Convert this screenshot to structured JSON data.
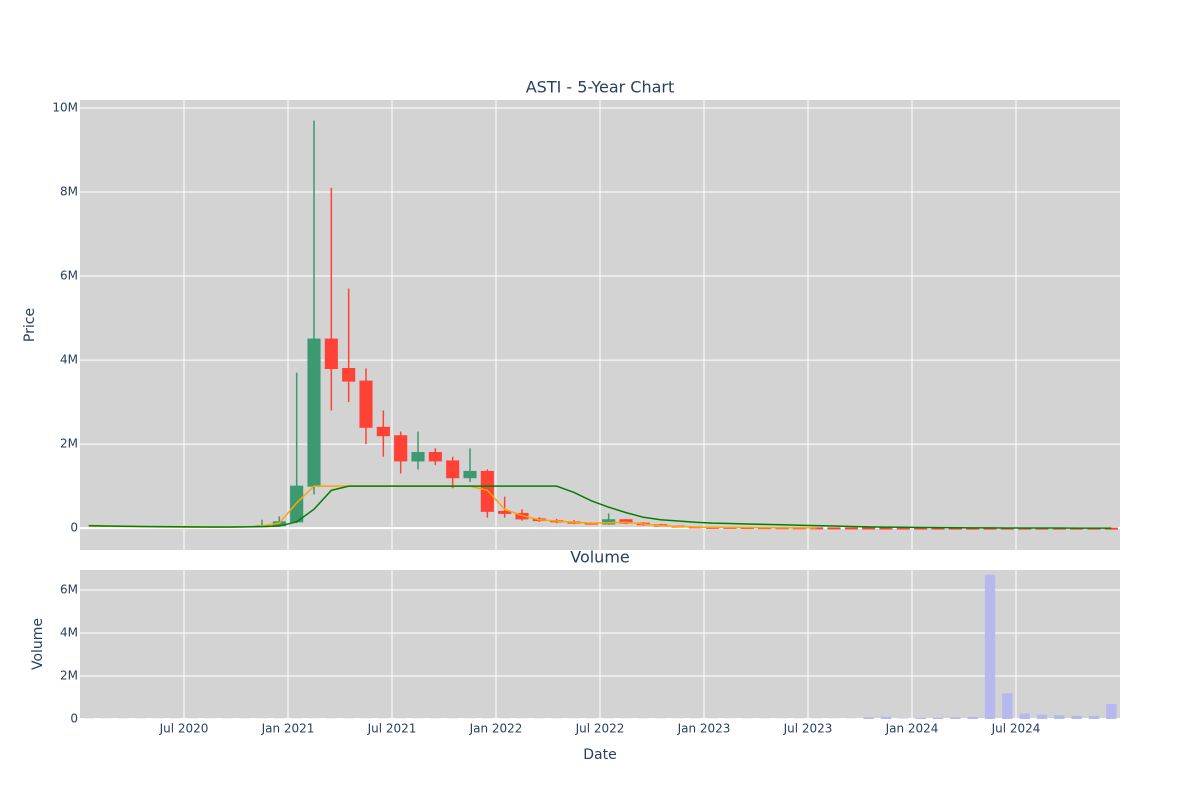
{
  "chart_data": [
    {
      "type": "candlestick",
      "title": "ASTI - 5-Year Chart",
      "y_label": "Price",
      "xlim": [
        "2020-01",
        "2025-01"
      ],
      "x": [
        "2020-01",
        "2020-02",
        "2020-03",
        "2020-04",
        "2020-05",
        "2020-06",
        "2020-07",
        "2020-08",
        "2020-09",
        "2020-10",
        "2020-11",
        "2020-12",
        "2021-01",
        "2021-02",
        "2021-03",
        "2021-04",
        "2021-05",
        "2021-06",
        "2021-07",
        "2021-08",
        "2021-09",
        "2021-10",
        "2021-11",
        "2021-12",
        "2022-01",
        "2022-02",
        "2022-03",
        "2022-04",
        "2022-05",
        "2022-06",
        "2022-07",
        "2022-08",
        "2022-09",
        "2022-10",
        "2022-11",
        "2022-12",
        "2023-01",
        "2023-02",
        "2023-03",
        "2023-04",
        "2023-05",
        "2023-06",
        "2023-07",
        "2023-08",
        "2023-09",
        "2023-10",
        "2023-11",
        "2023-12",
        "2024-01",
        "2024-02",
        "2024-03",
        "2024-04",
        "2024-05",
        "2024-06",
        "2024-07",
        "2024-08",
        "2024-09",
        "2024-10",
        "2024-11",
        "2024-12"
      ],
      "open": [
        null,
        null,
        null,
        null,
        null,
        null,
        null,
        null,
        null,
        null,
        40000,
        60000,
        150000,
        1000000,
        4500000,
        3800000,
        3500000,
        2400000,
        2200000,
        1600000,
        1800000,
        1600000,
        1200000,
        1350000,
        400000,
        350000,
        220000,
        180000,
        150000,
        120000,
        100000,
        200000,
        120000,
        80000,
        50000,
        30000,
        20000,
        18000,
        15000,
        12000,
        10000,
        8000,
        7000,
        6000,
        5000,
        4000,
        3500,
        3000,
        2500,
        2000,
        1800,
        1500,
        1200,
        1000,
        900,
        800,
        700,
        600,
        500,
        400
      ],
      "high": [
        null,
        null,
        null,
        null,
        null,
        null,
        null,
        null,
        null,
        null,
        200000,
        280000,
        3700000,
        9700000,
        8100000,
        5700000,
        3800000,
        2800000,
        2300000,
        2300000,
        1900000,
        1700000,
        1900000,
        1400000,
        750000,
        450000,
        260000,
        220000,
        190000,
        140000,
        350000,
        220000,
        140000,
        100000,
        60000,
        40000,
        25000,
        22000,
        18000,
        15000,
        12000,
        10000,
        9000,
        8000,
        6000,
        5000,
        4000,
        3500,
        3000,
        2500,
        2200,
        1800,
        1500,
        1300,
        1100,
        1000,
        900,
        800,
        700,
        600
      ],
      "low": [
        null,
        null,
        null,
        null,
        null,
        null,
        null,
        null,
        null,
        null,
        30000,
        50000,
        120000,
        800000,
        2800000,
        3000000,
        2000000,
        1700000,
        1300000,
        1400000,
        1500000,
        950000,
        1100000,
        250000,
        250000,
        180000,
        150000,
        120000,
        100000,
        90000,
        80000,
        100000,
        60000,
        40000,
        20000,
        10000,
        15000,
        12000,
        10000,
        9000,
        7000,
        6000,
        5000,
        4000,
        3500,
        3000,
        2500,
        2000,
        1800,
        1500,
        1300,
        1100,
        900,
        800,
        700,
        600,
        500,
        400,
        350,
        250
      ],
      "close": [
        null,
        null,
        null,
        null,
        null,
        null,
        null,
        null,
        null,
        null,
        60000,
        150000,
        1000000,
        4500000,
        3800000,
        3500000,
        2400000,
        2200000,
        1600000,
        1800000,
        1600000,
        1200000,
        1350000,
        400000,
        350000,
        220000,
        180000,
        150000,
        120000,
        100000,
        200000,
        120000,
        80000,
        50000,
        30000,
        20000,
        18000,
        15000,
        12000,
        10000,
        8000,
        7000,
        6000,
        5000,
        4000,
        3500,
        3000,
        2500,
        2000,
        1800,
        1500,
        1200,
        1000,
        900,
        800,
        700,
        600,
        500,
        400,
        300
      ],
      "increasing_color": "#3d9970",
      "decreasing_color": "#ff4136",
      "series": [
        {
          "color": "#ffa500",
          "values": [
            50000,
            45000,
            40000,
            35000,
            30000,
            28000,
            25000,
            25000,
            25000,
            30000,
            50000,
            120000,
            600000,
            1000000,
            1000000,
            1000000,
            1000000,
            1000000,
            1000000,
            1000000,
            1000000,
            1000000,
            1000000,
            900000,
            450000,
            300000,
            200000,
            170000,
            140000,
            120000,
            130000,
            140000,
            100000,
            60000,
            40000,
            25000,
            20000,
            15000,
            12000,
            10000,
            8000,
            7000,
            6000,
            null,
            null,
            null,
            null,
            null,
            null,
            null,
            null,
            null,
            null,
            null,
            null,
            null,
            null,
            null,
            null,
            null
          ]
        },
        {
          "color": "#008000",
          "values": [
            60000,
            50000,
            45000,
            40000,
            35000,
            32000,
            30000,
            28000,
            28000,
            30000,
            35000,
            50000,
            150000,
            450000,
            900000,
            1000000,
            1000000,
            1000000,
            1000000,
            1000000,
            1000000,
            1000000,
            1000000,
            1000000,
            1000000,
            1000000,
            1000000,
            1000000,
            850000,
            650000,
            500000,
            370000,
            260000,
            200000,
            170000,
            140000,
            120000,
            110000,
            100000,
            90000,
            80000,
            70000,
            60000,
            50000,
            40000,
            30000,
            25000,
            20000,
            15000,
            12000,
            10000,
            8000,
            6000,
            5000,
            4000,
            3000,
            2500,
            2000,
            1500,
            1000
          ]
        }
      ],
      "ylim": [
        -520000,
        10190000
      ],
      "yticks": [
        0,
        {
          "value": 2000000,
          "label": "2M"
        },
        {
          "value": 4000000,
          "label": "4M"
        },
        {
          "value": 6000000,
          "label": "6M"
        },
        {
          "value": 8000000,
          "label": "8M"
        },
        {
          "value": 10000000,
          "label": "10M"
        }
      ],
      "grid": true
    },
    {
      "type": "bar",
      "title": "Volume",
      "y_label": "Volume",
      "x_label": "Date",
      "xlim": [
        "2020-01",
        "2025-01"
      ],
      "x": [
        "2020-01",
        "2020-02",
        "2020-03",
        "2020-04",
        "2020-05",
        "2020-06",
        "2020-07",
        "2020-08",
        "2020-09",
        "2020-10",
        "2020-11",
        "2020-12",
        "2021-01",
        "2021-02",
        "2021-03",
        "2021-04",
        "2021-05",
        "2021-06",
        "2021-07",
        "2021-08",
        "2021-09",
        "2021-10",
        "2021-11",
        "2021-12",
        "2022-01",
        "2022-02",
        "2022-03",
        "2022-04",
        "2022-05",
        "2022-06",
        "2022-07",
        "2022-08",
        "2022-09",
        "2022-10",
        "2022-11",
        "2022-12",
        "2023-01",
        "2023-02",
        "2023-03",
        "2023-04",
        "2023-05",
        "2023-06",
        "2023-07",
        "2023-08",
        "2023-09",
        "2023-10",
        "2023-11",
        "2023-12",
        "2024-01",
        "2024-02",
        "2024-03",
        "2024-04",
        "2024-05",
        "2024-06",
        "2024-07",
        "2024-08",
        "2024-09",
        "2024-10",
        "2024-11",
        "2024-12"
      ],
      "values": [
        10000,
        10000,
        10000,
        10000,
        10000,
        10000,
        10000,
        10000,
        10000,
        10000,
        10000,
        10000,
        10000,
        10000,
        10000,
        10000,
        10000,
        10000,
        10000,
        10000,
        10000,
        10000,
        10000,
        10000,
        10000,
        10000,
        10000,
        10000,
        10000,
        10000,
        10000,
        10000,
        10000,
        10000,
        10000,
        10000,
        10000,
        10000,
        10000,
        10000,
        10000,
        10000,
        10000,
        10000,
        10000,
        80000,
        100000,
        20000,
        50000,
        60000,
        80000,
        100000,
        6700000,
        1200000,
        250000,
        200000,
        180000,
        150000,
        150000,
        700000
      ],
      "color": "#b8b8f0",
      "ylim": [
        0,
        6930000
      ],
      "yticks": [
        0,
        {
          "value": 2000000,
          "label": "2M"
        },
        {
          "value": 4000000,
          "label": "4M"
        },
        {
          "value": 6000000,
          "label": "6M"
        }
      ],
      "xticks": [
        {
          "value": "2020-07",
          "label": "Jul 2020"
        },
        {
          "value": "2021-01",
          "label": "Jan 2021"
        },
        {
          "value": "2021-07",
          "label": "Jul 2021"
        },
        {
          "value": "2022-01",
          "label": "Jan 2022"
        },
        {
          "value": "2022-07",
          "label": "Jul 2022"
        },
        {
          "value": "2023-01",
          "label": "Jan 2023"
        },
        {
          "value": "2023-07",
          "label": "Jul 2023"
        },
        {
          "value": "2024-01",
          "label": "Jan 2024"
        },
        {
          "value": "2024-07",
          "label": "Jul 2024"
        }
      ],
      "grid": true
    }
  ]
}
